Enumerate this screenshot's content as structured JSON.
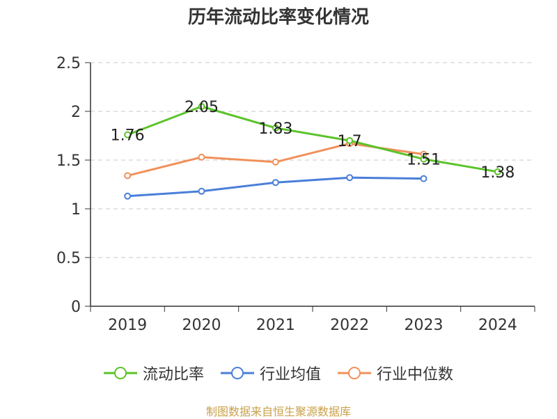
{
  "chart_data": {
    "type": "line",
    "title": "历年流动比率变化情况",
    "categories": [
      "2019",
      "2020",
      "2021",
      "2022",
      "2023",
      "2024"
    ],
    "ylim": [
      0,
      2.5
    ],
    "yticks": [
      "0",
      "0.5",
      "1",
      "1.5",
      "2",
      "2.5"
    ],
    "ytick_values": [
      0,
      0.5,
      1,
      1.5,
      2,
      2.5
    ],
    "grid": true,
    "legend_position": "bottom",
    "series": [
      {
        "name": "流动比率",
        "color": "#5bc32a",
        "values": [
          1.76,
          2.05,
          1.83,
          1.7,
          1.51,
          1.38
        ],
        "labels": [
          "1.76",
          "2.05",
          "1.83",
          "1.7",
          "1.51",
          "1.38"
        ]
      },
      {
        "name": "行业均值",
        "color": "#4a7fd9",
        "values": [
          1.13,
          1.18,
          1.27,
          1.32,
          1.31,
          null
        ]
      },
      {
        "name": "行业中位数",
        "color": "#f0905a",
        "values": [
          1.34,
          1.53,
          1.48,
          1.67,
          1.56,
          null
        ]
      }
    ]
  },
  "source": "制图数据来自恒生聚源数据库"
}
